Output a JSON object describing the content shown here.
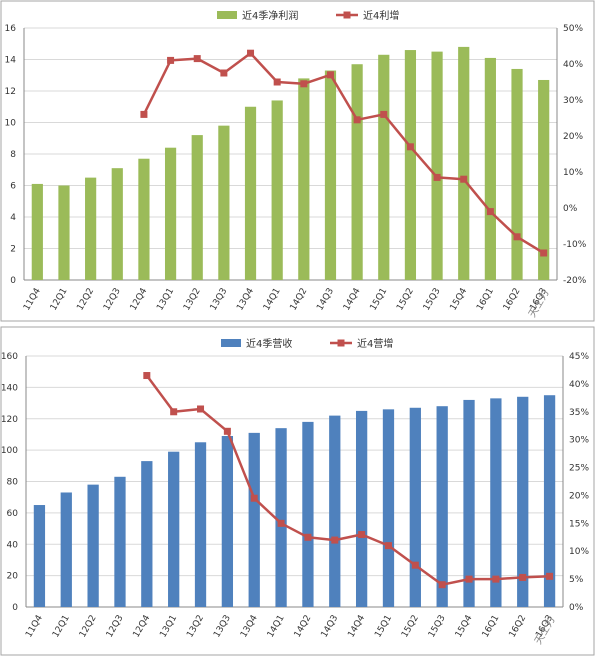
{
  "colors": {
    "profit_bar": "#9BBB59",
    "revenue_bar": "#4F81BD",
    "growth_line": "#C0504D",
    "grid": "#D9D9D9",
    "frame": "#A6A6A6"
  },
  "watermark": "天士力",
  "chart_data": [
    {
      "type": "bar",
      "categories": [
        "11Q4",
        "12Q1",
        "12Q2",
        "12Q3",
        "12Q4",
        "13Q1",
        "13Q2",
        "13Q3",
        "13Q4",
        "14Q1",
        "14Q2",
        "14Q3",
        "14Q4",
        "15Q1",
        "15Q2",
        "15Q3",
        "15Q4",
        "16Q1",
        "16Q2",
        "16Q3"
      ],
      "series": [
        {
          "name": "近4季净利润",
          "kind": "bar",
          "axis": "left",
          "values": [
            6.1,
            6.0,
            6.5,
            7.1,
            7.7,
            8.4,
            9.2,
            9.8,
            11.0,
            11.4,
            12.8,
            13.3,
            13.7,
            14.3,
            14.6,
            14.5,
            14.8,
            14.1,
            13.4,
            12.7
          ]
        },
        {
          "name": "近4利增",
          "kind": "line",
          "axis": "right",
          "values": [
            null,
            null,
            null,
            null,
            26,
            41,
            41.5,
            37.5,
            43,
            35,
            34.5,
            37,
            24.5,
            26,
            17,
            8.5,
            8,
            -1,
            -8,
            -12.5
          ]
        }
      ],
      "ylim_left": [
        0,
        16
      ],
      "yticks_left": [
        "0",
        "2",
        "4",
        "6",
        "8",
        "10",
        "12",
        "14",
        "16"
      ],
      "ylim_right": [
        -20,
        50
      ],
      "yticks_right": [
        "-20%",
        "-10%",
        "0%",
        "10%",
        "20%",
        "30%",
        "40%",
        "50%"
      ],
      "legend": "top-center",
      "grid": true
    },
    {
      "type": "bar",
      "categories": [
        "11Q4",
        "12Q1",
        "12Q2",
        "12Q3",
        "12Q4",
        "13Q1",
        "13Q2",
        "13Q3",
        "13Q4",
        "14Q1",
        "14Q2",
        "14Q3",
        "14Q4",
        "15Q1",
        "15Q2",
        "15Q3",
        "15Q4",
        "16Q1",
        "16Q2",
        "16Q3"
      ],
      "series": [
        {
          "name": "近4季营收",
          "kind": "bar",
          "axis": "left",
          "values": [
            65,
            73,
            78,
            83,
            93,
            99,
            105,
            109,
            111,
            114,
            118,
            122,
            125,
            126,
            127,
            128,
            132,
            133,
            134,
            135
          ]
        },
        {
          "name": "近4营增",
          "kind": "line",
          "axis": "right",
          "values": [
            null,
            null,
            null,
            null,
            41.5,
            35,
            35.5,
            31.5,
            19.5,
            15,
            12.5,
            12,
            13,
            11,
            7.5,
            4,
            5,
            5,
            5.3,
            5.5
          ]
        }
      ],
      "ylim_left": [
        0,
        160
      ],
      "yticks_left": [
        "0",
        "20",
        "40",
        "60",
        "80",
        "100",
        "120",
        "140",
        "160"
      ],
      "ylim_right": [
        0,
        45
      ],
      "yticks_right": [
        "0%",
        "5%",
        "10%",
        "15%",
        "20%",
        "25%",
        "30%",
        "35%",
        "40%",
        "45%"
      ],
      "legend": "top-center",
      "grid": true
    }
  ]
}
